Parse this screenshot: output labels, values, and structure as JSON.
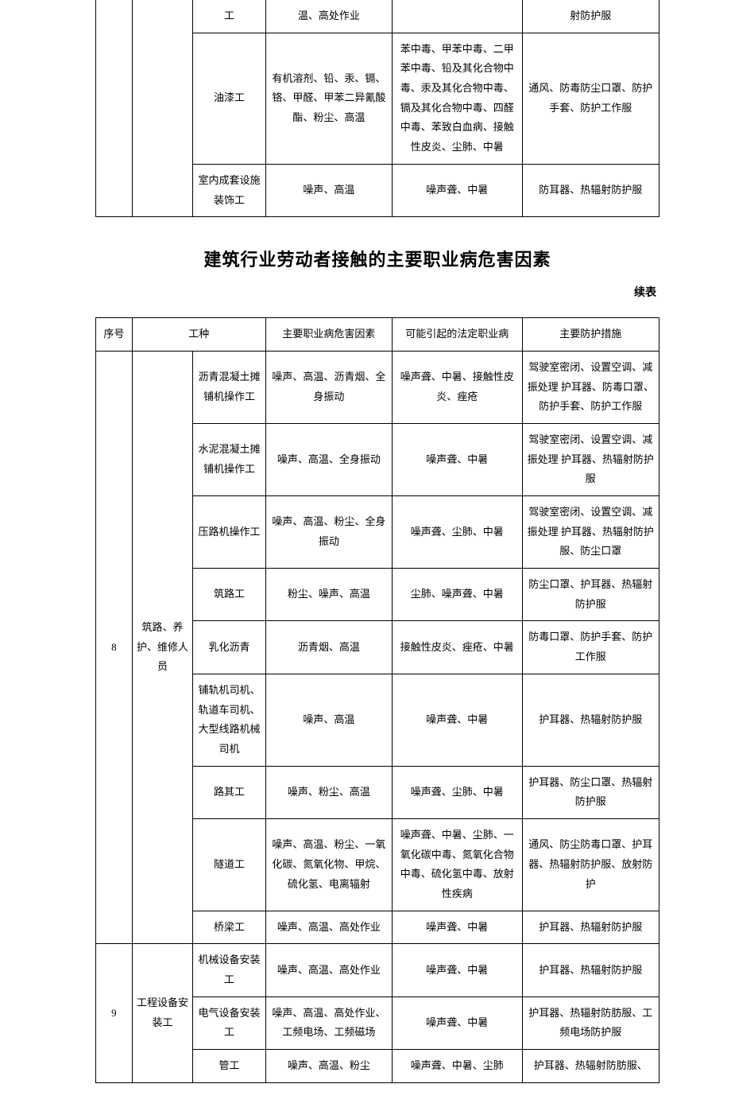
{
  "title": "建筑行业劳动者接触的主要职业病危害因素",
  "continued_label": "续表",
  "headers": {
    "seq": "序号",
    "job": "工种",
    "factor": "主要职业病危害因素",
    "disease": "可能引起的法定职业病",
    "protect": "主要防护措施"
  },
  "table1_rows": [
    {
      "seq": "",
      "category": "",
      "job": "工",
      "factor": "温、高处作业",
      "disease": "",
      "protect": "射防护服"
    },
    {
      "job": "油漆工",
      "factor": "有机溶剂、铅、汞、镉、铬、甲醛、甲苯二异氰酸酯、粉尘、高温",
      "disease": "苯中毒、甲苯中毒、二甲苯中毒、铅及其化合物中毒、汞及其化合物中毒、镉及其化合物中毒、四醛中毒、苯致白血病、接触性皮炎、尘肺、中暑",
      "protect": "通风、防毒防尘口罩、防护手套、防护工作服"
    },
    {
      "job": "室内成套设施装饰工",
      "factor": "噪声、高温",
      "disease": "噪声聋、中暑",
      "protect": "防耳器、热辐射防护服"
    }
  ],
  "table2_groups": [
    {
      "seq": "8",
      "category": "筑路、养护、维修人员",
      "rows": [
        {
          "job": "沥青混凝土摊铺机操作工",
          "factor": "噪声、高温、沥青烟、全身振动",
          "disease": "噪声聋、中暑、接触性皮炎、痤疮",
          "protect": "驾驶室密闭、设置空调、减振处理 护耳器、防毒口罩、防护手套、防护工作服"
        },
        {
          "job": "水泥混凝土摊铺机操作工",
          "factor": "噪声、高温、全身振动",
          "disease": "噪声聋、中暑",
          "protect": "驾驶室密闭、设置空调、减振处理 护耳器、热辐射防护服"
        },
        {
          "job": "压路机操作工",
          "factor": "噪声、高温、粉尘、全身振动",
          "disease": "噪声聋、尘肺、中暑",
          "protect": "驾驶室密闭、设置空调、减振处理 护耳器、热辐射防护服、防尘口罩"
        },
        {
          "job": "筑路工",
          "factor": "粉尘、噪声、高温",
          "disease": "尘肺、噪声聋、中暑",
          "protect": "防尘口罩、护耳器、热辐射防护服"
        },
        {
          "job": "乳化沥青",
          "factor": "沥青烟、高温",
          "disease": "接触性皮炎、痤疮、中暑",
          "protect": "防毒口罩、防护手套、防护工作服"
        },
        {
          "job": "铺轨机司机、轨道车司机、大型线路机械司机",
          "factor": "噪声、高温",
          "disease": "噪声聋、中暑",
          "protect": "护耳器、热辐射防护服"
        },
        {
          "job": "路其工",
          "factor": "噪声、粉尘、高温",
          "disease": "噪声聋、尘肺、中暑",
          "protect": "护耳器、防尘口罩、热辐射防护服"
        },
        {
          "job": "隧道工",
          "factor": "噪声、高温、粉尘、一氧化碳、氮氧化物、甲烷、硫化氢、电离辐射",
          "disease": "噪声聋、中暑、尘肺、一氧化碳中毒、氮氧化合物中毒、硫化氢中毒、放射性疾病",
          "protect": "通风、防尘防毒口罩、护耳器、热辐射防护服、放射防护"
        },
        {
          "job": "桥梁工",
          "factor": "噪声、高温、高处作业",
          "disease": "噪声聋、中暑",
          "protect": "护耳器、热辐射防护服"
        }
      ]
    },
    {
      "seq": "9",
      "category": "工程设备安装工",
      "rows": [
        {
          "job": "机械设备安装工",
          "factor": "噪声、高温、高处作业",
          "disease": "噪声聋、中暑",
          "protect": "护耳器、热辐射防护服"
        },
        {
          "job": "电气设备安装工",
          "factor": "噪声、高温、高处作业、工频电场、工频磁场",
          "disease": "噪声聋、中暑",
          "protect": "护耳器、热辐射防肪服、工频电场防护服"
        },
        {
          "job": "管工",
          "factor": "噪声、高温、粉尘",
          "disease": "噪声聋、中暑、尘肺",
          "protect": "护耳器、热辐射防肪服、"
        }
      ]
    }
  ]
}
